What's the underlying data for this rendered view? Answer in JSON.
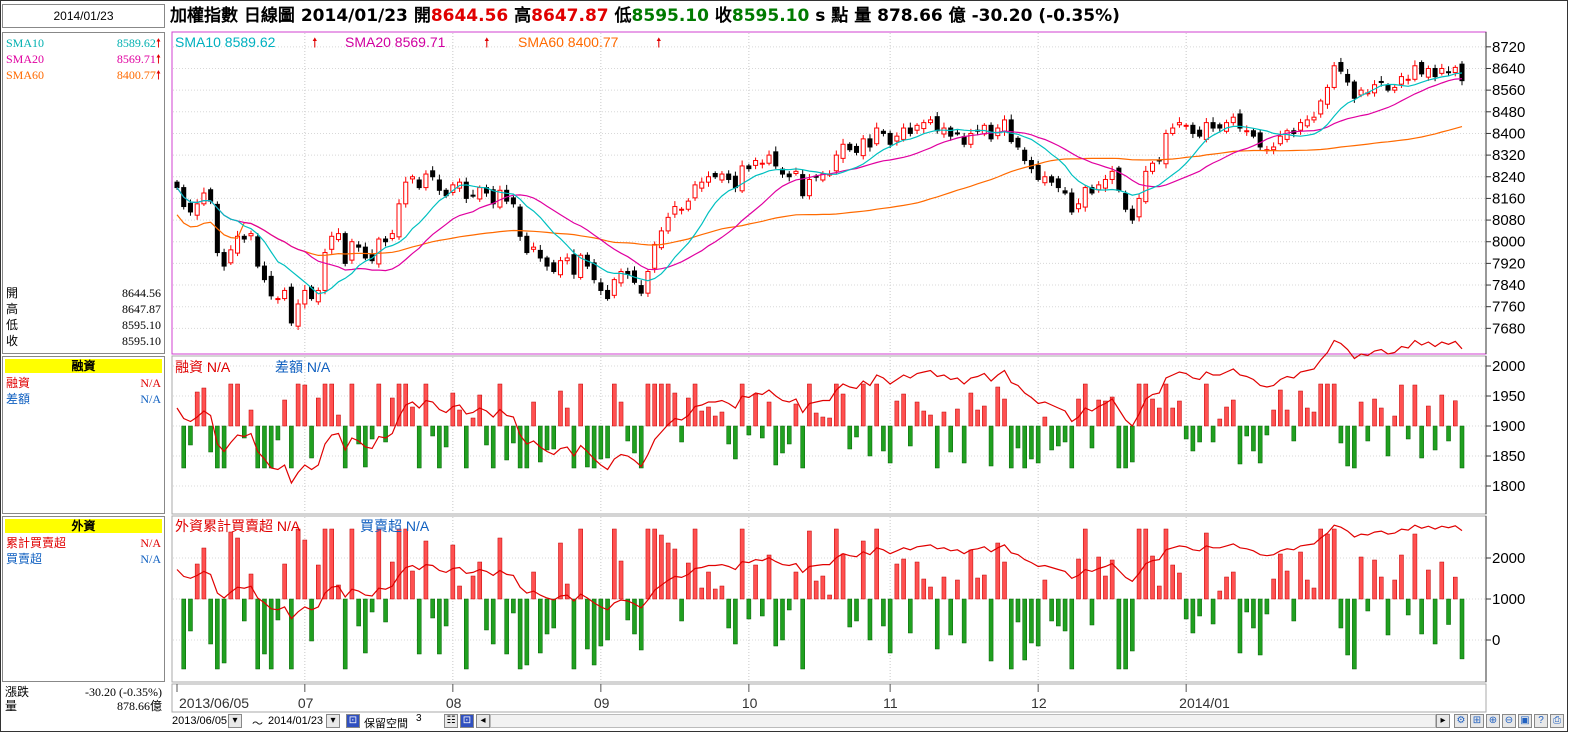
{
  "header": {
    "date": "2014/01/23",
    "title": "加權指數 日線圖 2014/01/23",
    "open_label": "開",
    "open": "8644.56",
    "high_label": "高",
    "high": "8647.87",
    "low_label": "低",
    "low": "8595.10",
    "close_label": "收",
    "close": "8595.10",
    "unit": "s 點",
    "volume_label": "量",
    "volume": "878.66 億",
    "change": "-30.20 (-0.35%)"
  },
  "sidebar": {
    "sma10_label": "SMA10",
    "sma10_value": "8589.62",
    "sma20_label": "SMA20",
    "sma20_value": "8569.71",
    "sma60_label": "SMA60",
    "sma60_value": "8400.77",
    "open_label": "開",
    "open_value": "8644.56",
    "high_label": "高",
    "high_value": "8647.87",
    "low_label": "低",
    "low_value": "8595.10",
    "close_label": "收",
    "close_value": "8595.10",
    "margin_header": "融資",
    "margin_label": "融資",
    "margin_value": "N/A",
    "diff_label": "差額",
    "diff_value": "N/A",
    "foreign_header": "外資",
    "cum_label": "累計買賣超",
    "cum_value": "N/A",
    "net_label": "買賣超",
    "net_value": "N/A",
    "chg_label": "漲跌",
    "chg_value": "-30.20 (-0.35%)",
    "vol_label": "量",
    "vol_value": "878.66億"
  },
  "legend": {
    "sma10": "SMA10 8589.62",
    "sma20": "SMA20 8569.71",
    "sma60": "SMA60 8400.77",
    "margin": "融資 N/A",
    "diff": "差額 N/A",
    "cum": "外資累計買賣超 N/A",
    "net": "買賣超 N/A"
  },
  "bottom": {
    "from": "2013/06/05",
    "tilde": "～",
    "to": "2014/01/23",
    "keep": "保留空間",
    "keep_n": "3"
  },
  "colors": {
    "up": "#ff0000",
    "down": "#000000",
    "sma10": "#00c0c0",
    "sma20": "#e000a0",
    "sma60": "#ff6a00",
    "neg_bar": "#00a000",
    "pos_bar": "#ff3030"
  },
  "chart_data": [
    {
      "type": "candlestick",
      "title": "加權指數 日線圖",
      "x_ticks": [
        "2013/06/05",
        "07",
        "08",
        "09",
        "10",
        "11",
        "12",
        "2014/01"
      ],
      "ylim": [
        7600,
        8760
      ],
      "y_ticks": [
        7680,
        7760,
        7840,
        7920,
        8000,
        8080,
        8160,
        8240,
        8320,
        8400,
        8480,
        8560,
        8640,
        8720
      ],
      "close": [
        8200,
        8130,
        8110,
        8140,
        8180,
        8150,
        7960,
        7910,
        7970,
        8020,
        8010,
        8030,
        7910,
        7860,
        7800,
        7790,
        7820,
        7700,
        7770,
        7820,
        7790,
        7820,
        7960,
        8020,
        8030,
        7920,
        8000,
        7980,
        7940,
        7930,
        8010,
        8000,
        8030,
        8140,
        8220,
        8240,
        8200,
        8250,
        8240,
        8190,
        8170,
        8210,
        8220,
        8160,
        8170,
        8200,
        8180,
        8140,
        8190,
        8150,
        8140,
        8020,
        7960,
        7980,
        7940,
        7910,
        7890,
        7930,
        7940,
        7880,
        7950,
        7910,
        7860,
        7820,
        7790,
        7860,
        7890,
        7880,
        7850,
        7810,
        7890,
        7990,
        8040,
        8090,
        8130,
        8120,
        8150,
        8210,
        8220,
        8240,
        8240,
        8250,
        8230,
        8200,
        8280,
        8270,
        8300,
        8290,
        8320,
        8280,
        8250,
        8240,
        8260,
        8170,
        8230,
        8240,
        8250,
        8250,
        8320,
        8360,
        8340,
        8330,
        8380,
        8350,
        8420,
        8400,
        8360,
        8390,
        8420,
        8400,
        8430,
        8440,
        8450,
        8410,
        8420,
        8390,
        8400,
        8360,
        8400,
        8410,
        8430,
        8380,
        8420,
        8450,
        8370,
        8350,
        8300,
        8270,
        8230,
        8240,
        8220,
        8200,
        8180,
        8110,
        8140,
        8200,
        8180,
        8210,
        8230,
        8260,
        8190,
        8120,
        8080,
        8160,
        8260,
        8290,
        8300,
        8400,
        8420,
        8440,
        8430,
        8400,
        8390,
        8440,
        8420,
        8420,
        8440,
        8460,
        8420,
        8410,
        8390,
        8350,
        8340,
        8350,
        8390,
        8410,
        8400,
        8440,
        8450,
        8460,
        8520,
        8570,
        8650,
        8630,
        8590,
        8530,
        8560,
        8550,
        8580,
        8590,
        8560,
        8570,
        8610,
        8600,
        8650,
        8620,
        8640,
        8610,
        8640,
        8625,
        8644,
        8595
      ],
      "sma10_last": 8589.62,
      "sma20_last": 8569.71,
      "sma60_last": 8400.77
    },
    {
      "type": "bar",
      "title": "融資",
      "series": [
        {
          "name": "融資",
          "values": []
        },
        {
          "name": "差額",
          "values": []
        }
      ],
      "ylim": [
        1760,
        2010
      ],
      "y_ticks": [
        1800,
        1850,
        1900,
        1950,
        2000
      ]
    },
    {
      "type": "bar",
      "title": "外資",
      "series": [
        {
          "name": "外資累計買賣超",
          "values": []
        },
        {
          "name": "買賣超",
          "values": []
        }
      ],
      "y_ticks": [
        0,
        1000,
        2000
      ]
    }
  ]
}
